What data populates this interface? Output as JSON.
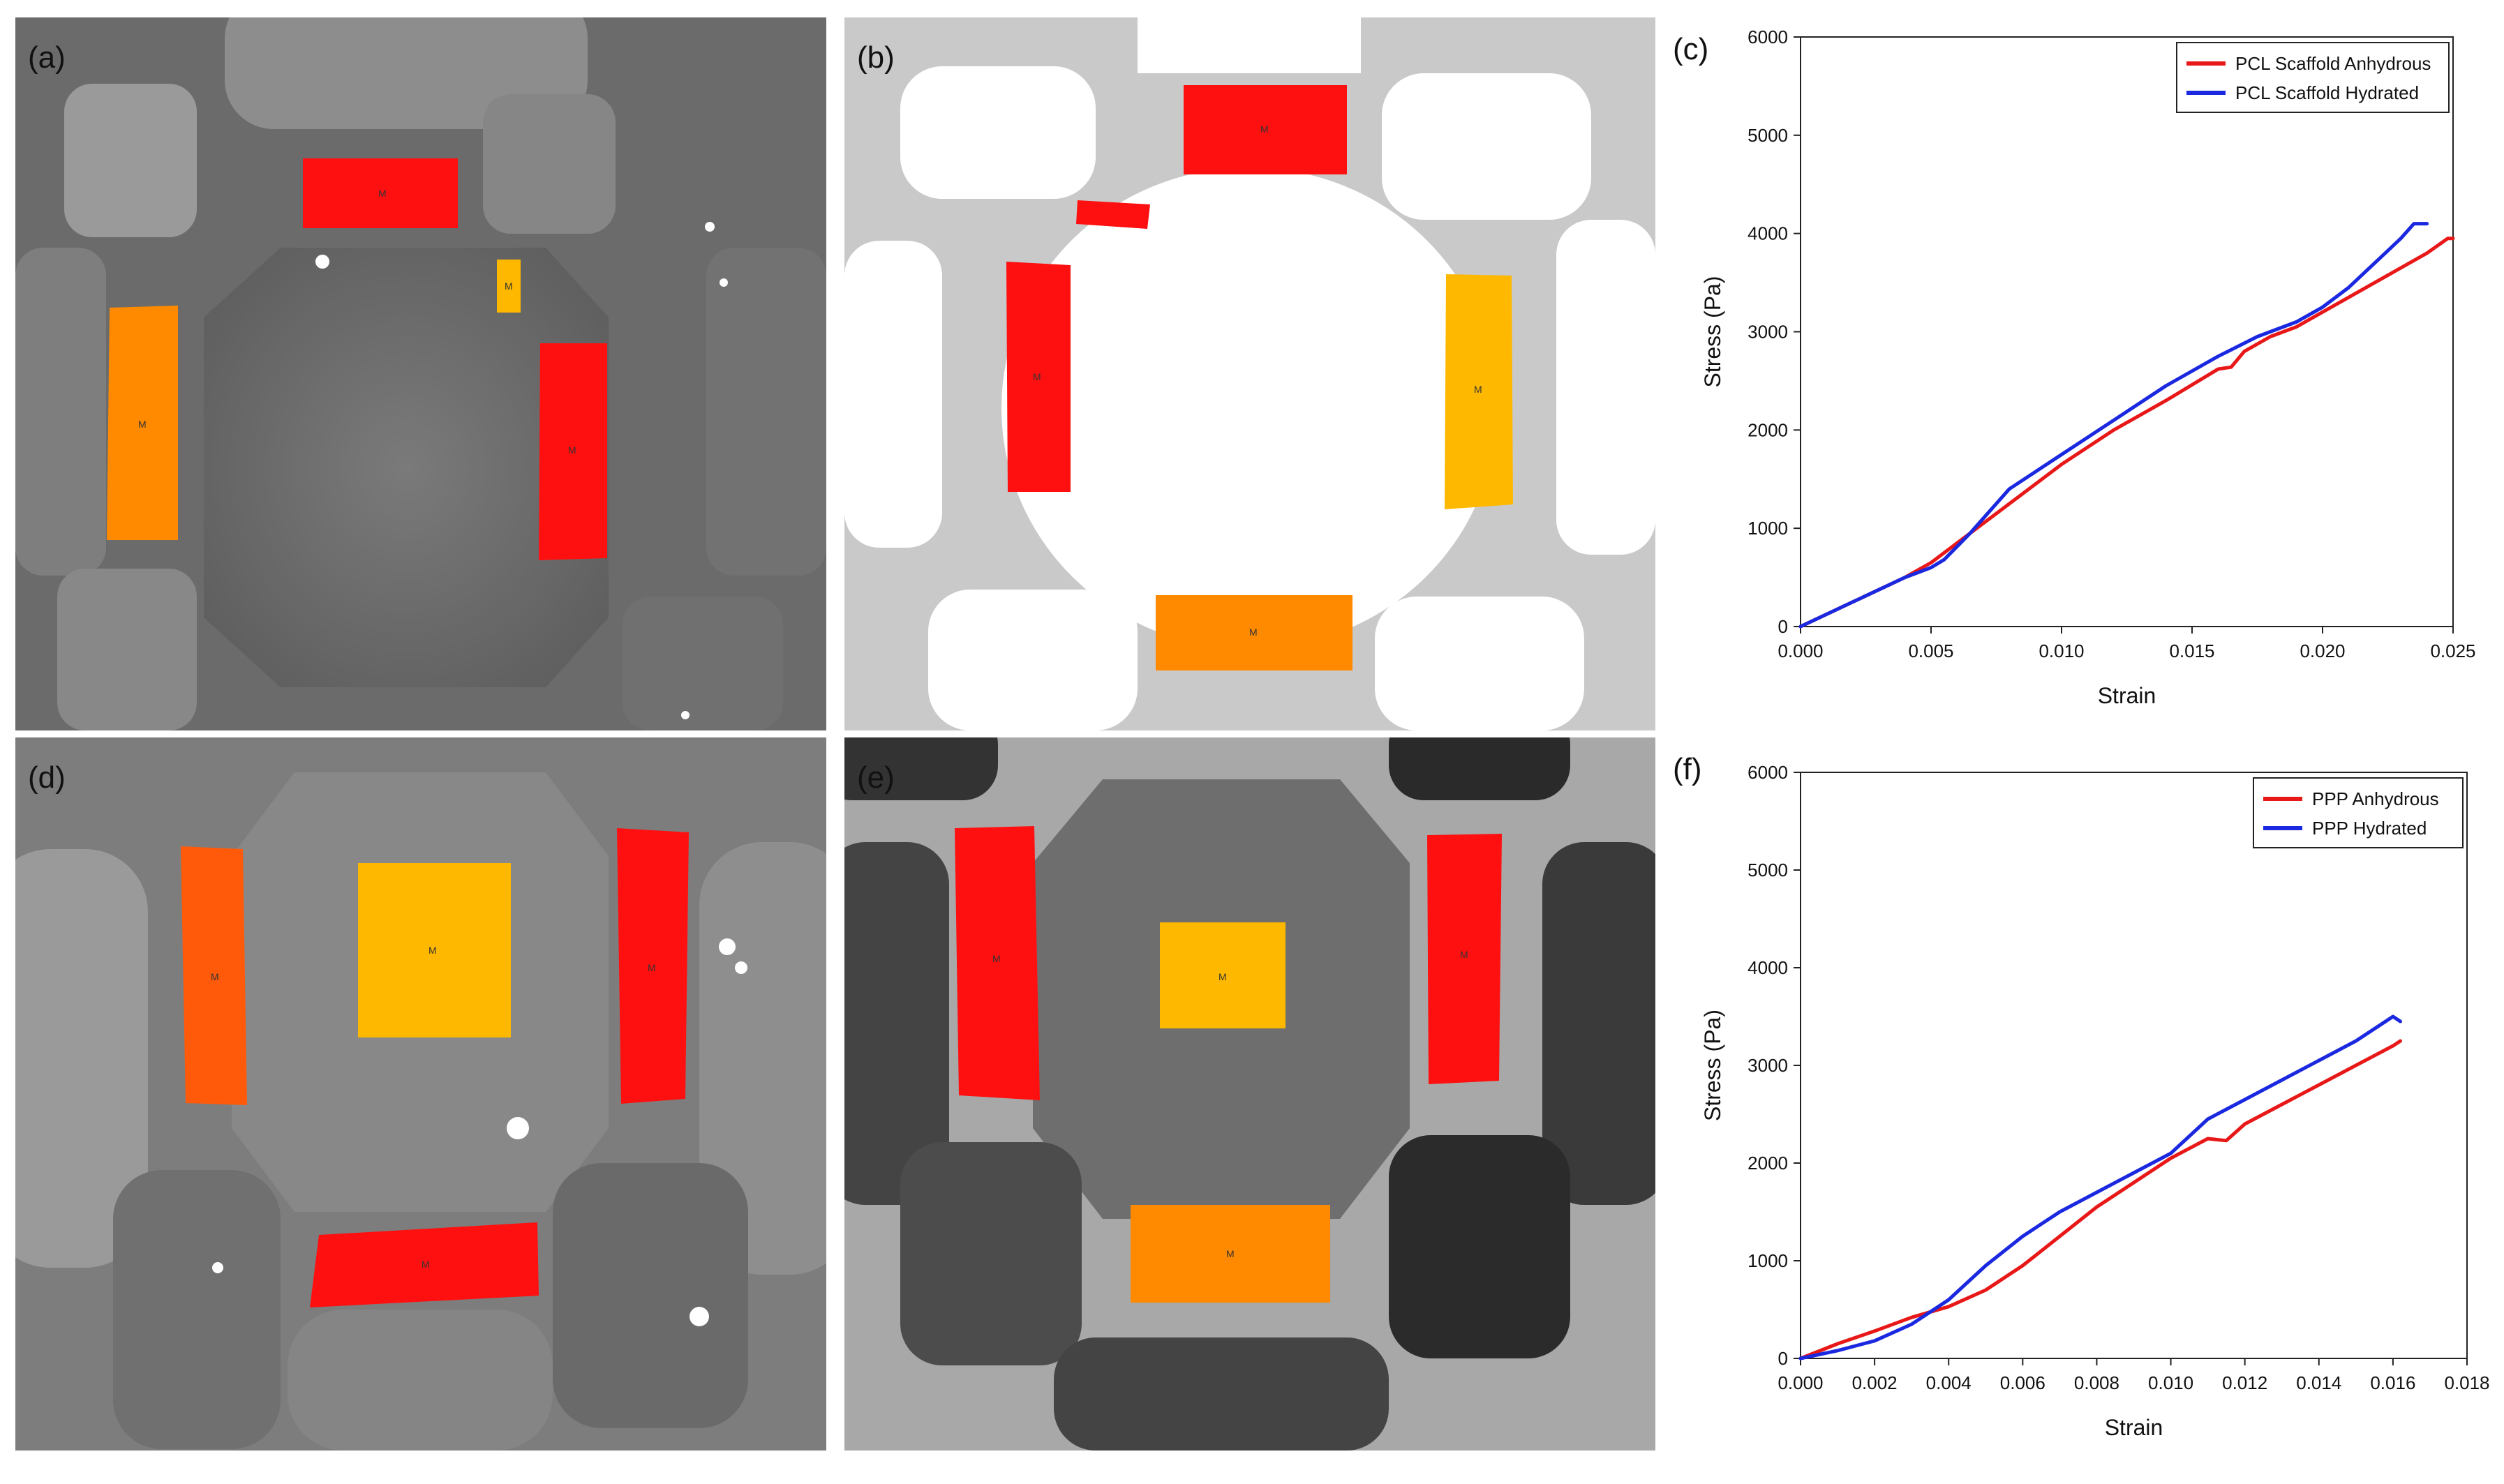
{
  "panels": {
    "a": {
      "label": "(a)"
    },
    "b": {
      "label": "(b)"
    },
    "d": {
      "label": "(d)"
    },
    "e": {
      "label": "(e)"
    }
  },
  "roi_label": "M",
  "colors": {
    "red": "#ff1010",
    "orange": "#ff8a00",
    "amber": "#ffb800",
    "orangered": "#ff5a0a"
  },
  "chart_data": [
    {
      "panel_label": "(c)",
      "type": "line",
      "xlabel": "Strain",
      "ylabel": "Stress (Pa)",
      "xlim": [
        0,
        0.025
      ],
      "ylim": [
        0,
        6000
      ],
      "xticks": [
        "0.000",
        "0.005",
        "0.010",
        "0.015",
        "0.020",
        "0.025"
      ],
      "yticks": [
        "0",
        "1000",
        "2000",
        "3000",
        "4000",
        "5000",
        "6000"
      ],
      "legend": "top-right",
      "series": [
        {
          "name": "PCL Scaffold Anhydrous",
          "color": "#e81818",
          "x": [
            0,
            0.002,
            0.004,
            0.005,
            0.006,
            0.007,
            0.008,
            0.01,
            0.012,
            0.014,
            0.016,
            0.0165,
            0.017,
            0.018,
            0.019,
            0.02,
            0.022,
            0.024,
            0.0248,
            0.025
          ],
          "y": [
            0,
            250,
            500,
            650,
            850,
            1050,
            1250,
            1650,
            2000,
            2300,
            2620,
            2640,
            2800,
            2950,
            3050,
            3200,
            3500,
            3800,
            3950,
            3950
          ]
        },
        {
          "name": "PCL Scaffold Hydrated",
          "color": "#1a28e0",
          "x": [
            0,
            0.002,
            0.004,
            0.005,
            0.0055,
            0.0065,
            0.008,
            0.01,
            0.012,
            0.014,
            0.016,
            0.0175,
            0.019,
            0.02,
            0.021,
            0.022,
            0.023,
            0.0235,
            0.024
          ],
          "y": [
            0,
            250,
            500,
            600,
            680,
            950,
            1400,
            1750,
            2100,
            2450,
            2750,
            2950,
            3100,
            3250,
            3450,
            3700,
            3950,
            4100,
            4100
          ]
        }
      ]
    },
    {
      "panel_label": "(f)",
      "type": "line",
      "xlabel": "Strain",
      "ylabel": "Stress (Pa)",
      "xlim": [
        0,
        0.018
      ],
      "ylim": [
        0,
        6000
      ],
      "xticks": [
        "0.000",
        "0.002",
        "0.004",
        "0.006",
        "0.008",
        "0.010",
        "0.012",
        "0.014",
        "0.016",
        "0.018"
      ],
      "yticks": [
        "0",
        "1000",
        "2000",
        "3000",
        "4000",
        "5000",
        "6000"
      ],
      "legend": "top-right",
      "series": [
        {
          "name": "PPP Anhydrous",
          "color": "#e81818",
          "x": [
            0,
            0.001,
            0.002,
            0.003,
            0.004,
            0.005,
            0.006,
            0.007,
            0.008,
            0.009,
            0.01,
            0.011,
            0.0115,
            0.012,
            0.013,
            0.014,
            0.015,
            0.016,
            0.0162
          ],
          "y": [
            0,
            150,
            280,
            420,
            530,
            700,
            950,
            1250,
            1550,
            1800,
            2050,
            2250,
            2230,
            2400,
            2600,
            2800,
            3000,
            3200,
            3250
          ]
        },
        {
          "name": "PPP Hydrated",
          "color": "#1a28e0",
          "x": [
            0,
            0.001,
            0.002,
            0.003,
            0.004,
            0.005,
            0.006,
            0.007,
            0.008,
            0.009,
            0.01,
            0.011,
            0.0115,
            0.012,
            0.013,
            0.014,
            0.015,
            0.0158,
            0.016,
            0.0162
          ],
          "y": [
            0,
            80,
            180,
            350,
            600,
            950,
            1250,
            1500,
            1700,
            1900,
            2100,
            2450,
            2550,
            2650,
            2850,
            3050,
            3250,
            3450,
            3500,
            3450
          ]
        }
      ]
    }
  ]
}
